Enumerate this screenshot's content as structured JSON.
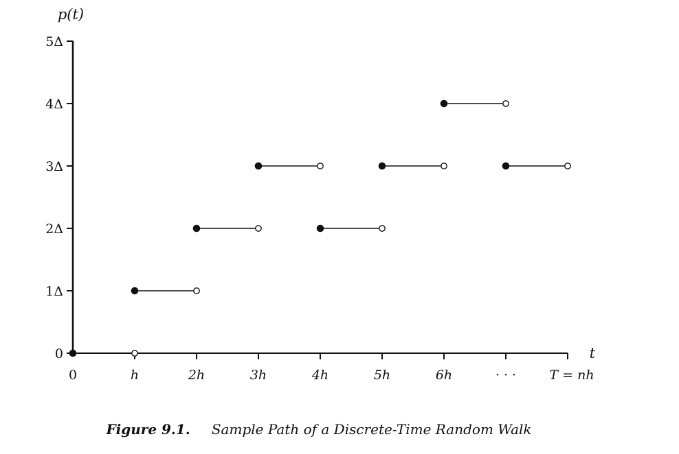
{
  "chart_data": {
    "type": "scatter",
    "title": "",
    "caption": {
      "prefix": "Figure 9.1.",
      "text": "Sample Path of a Discrete-Time Random Walk"
    },
    "xlabel": "t",
    "ylabel": "p(t)",
    "xlim": [
      0,
      8
    ],
    "ylim": [
      0,
      5
    ],
    "x_tick_labels": [
      "0",
      "h",
      "2h",
      "3h",
      "4h",
      "5h",
      "6h",
      "· · ·",
      "T = nh"
    ],
    "y_tick_labels": [
      "0",
      "1Δ",
      "2Δ",
      "3Δ",
      "4Δ",
      "5Δ"
    ],
    "steps": [
      {
        "x_start": 0,
        "x_end": 1,
        "y": 0
      },
      {
        "x_start": 1,
        "x_end": 2,
        "y": 1
      },
      {
        "x_start": 2,
        "x_end": 3,
        "y": 2
      },
      {
        "x_start": 3,
        "x_end": 4,
        "y": 3
      },
      {
        "x_start": 4,
        "x_end": 5,
        "y": 2
      },
      {
        "x_start": 5,
        "x_end": 6,
        "y": 3
      },
      {
        "x_start": 6,
        "x_end": 7,
        "y": 4
      },
      {
        "x_start": 7,
        "x_end": 8,
        "y": 3
      }
    ],
    "marker_legend": {
      "filled": "included left endpoint",
      "open": "excluded right endpoint"
    },
    "grid": false,
    "colors": {
      "ink": "#111111",
      "background": "#ffffff"
    }
  }
}
